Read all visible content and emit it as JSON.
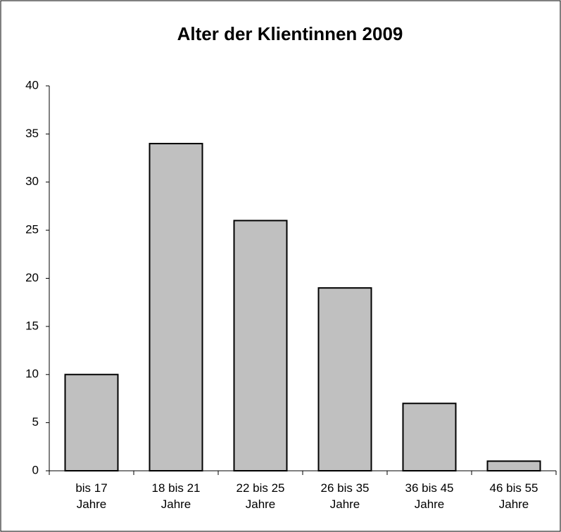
{
  "chart_data": {
    "type": "bar",
    "title": "Alter der Klientinnen 2009",
    "categories": [
      "bis 17 Jahre",
      "18 bis 21 Jahre",
      "22 bis 25 Jahre",
      "26 bis 35 Jahre",
      "36 bis 45 Jahre",
      "46 bis 55 Jahre"
    ],
    "values": [
      10,
      34,
      26,
      19,
      7,
      1
    ],
    "color": "#c0c0c0",
    "ylim": [
      0,
      40
    ],
    "yticks": [
      0,
      5,
      10,
      15,
      20,
      25,
      30,
      35,
      40
    ],
    "grid": false
  }
}
